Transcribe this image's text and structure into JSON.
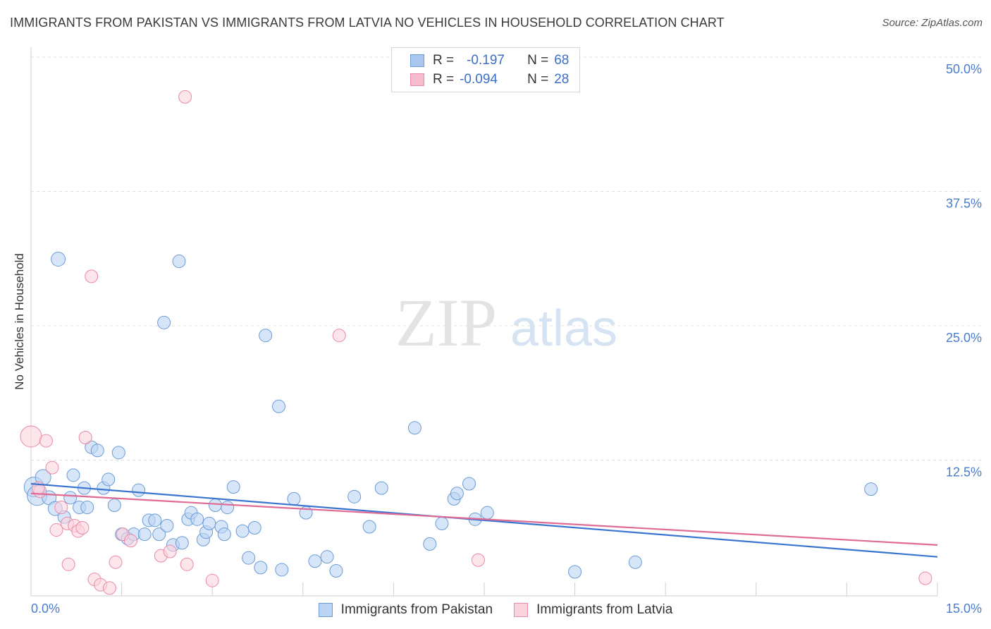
{
  "title": "IMMIGRANTS FROM PAKISTAN VS IMMIGRANTS FROM LATVIA NO VEHICLES IN HOUSEHOLD CORRELATION CHART",
  "source": "Source: ZipAtlas.com",
  "watermark": {
    "zip": "ZIP",
    "atlas": "atlas"
  },
  "stats": [
    {
      "r_label": "R =",
      "r_value": "-0.197",
      "n_label": "N =",
      "n_value": "68",
      "color": "#a9c7ee",
      "border": "#6b9bd6"
    },
    {
      "r_label": "R =",
      "r_value": "-0.094",
      "n_label": "N =",
      "n_value": "28",
      "color": "#f6bccd",
      "border": "#e88aa6"
    }
  ],
  "legend": [
    {
      "label": "Immigrants from Pakistan",
      "color": "#bcd4f3",
      "border": "#6b9bd6"
    },
    {
      "label": "Immigrants from Latvia",
      "color": "#fbd3df",
      "border": "#e88aa6"
    }
  ],
  "chart_data": {
    "type": "scatter",
    "ylabel": "No Vehicles in Household",
    "xlabel": "",
    "xlim": [
      0,
      15
    ],
    "ylim": [
      0,
      50
    ],
    "x_tick_labels": [
      {
        "value": 0,
        "label": "0.0%"
      },
      {
        "value": 15,
        "label": "15.0%"
      }
    ],
    "y_tick_labels": [
      {
        "value": 12.5,
        "label": "12.5%"
      },
      {
        "value": 25,
        "label": "25.0%"
      },
      {
        "value": 37.5,
        "label": "37.5%"
      },
      {
        "value": 50,
        "label": "50.0%"
      }
    ],
    "series": [
      {
        "name": "Immigrants from Pakistan",
        "color": "#6b9bd6",
        "fill": "#bcd4f3",
        "trend": {
          "x": [
            0,
            15
          ],
          "y": [
            10.3,
            3.5
          ],
          "color": "#3a74d1"
        },
        "points": [
          [
            0.05,
            10.0,
            14
          ],
          [
            0.1,
            9.2,
            14
          ],
          [
            0.2,
            10.9,
            11
          ],
          [
            0.3,
            9.0,
            10
          ],
          [
            0.4,
            8.0,
            10
          ],
          [
            0.45,
            31.2,
            10
          ],
          [
            0.55,
            7.2,
            9
          ],
          [
            0.65,
            9.0,
            9
          ],
          [
            0.7,
            11.1,
            9
          ],
          [
            0.8,
            8.1,
            9
          ],
          [
            0.88,
            9.9,
            9
          ],
          [
            0.93,
            8.1,
            9
          ],
          [
            1.0,
            13.7,
            9
          ],
          [
            1.1,
            13.4,
            9
          ],
          [
            1.2,
            9.9,
            9
          ],
          [
            1.28,
            10.7,
            9
          ],
          [
            1.38,
            8.3,
            9
          ],
          [
            1.45,
            13.2,
            9
          ],
          [
            1.5,
            5.6,
            9
          ],
          [
            1.6,
            5.2,
            9
          ],
          [
            1.7,
            5.6,
            9
          ],
          [
            1.78,
            9.7,
            9
          ],
          [
            1.88,
            5.6,
            9
          ],
          [
            1.95,
            6.9,
            9
          ],
          [
            2.05,
            6.9,
            9
          ],
          [
            2.12,
            5.6,
            9
          ],
          [
            2.2,
            25.3,
            9
          ],
          [
            2.25,
            6.4,
            9
          ],
          [
            2.35,
            4.6,
            9
          ],
          [
            2.45,
            31.0,
            9
          ],
          [
            2.5,
            4.8,
            9
          ],
          [
            2.6,
            7.0,
            9
          ],
          [
            2.65,
            7.6,
            9
          ],
          [
            2.75,
            7.0,
            9
          ],
          [
            2.85,
            5.1,
            9
          ],
          [
            2.9,
            5.8,
            9
          ],
          [
            2.95,
            6.6,
            9
          ],
          [
            3.05,
            8.3,
            9
          ],
          [
            3.15,
            6.3,
            9
          ],
          [
            3.2,
            5.6,
            9
          ],
          [
            3.25,
            8.1,
            9
          ],
          [
            3.35,
            10.0,
            9
          ],
          [
            3.5,
            5.9,
            9
          ],
          [
            3.6,
            3.4,
            9
          ],
          [
            3.7,
            6.2,
            9
          ],
          [
            3.8,
            2.5,
            9
          ],
          [
            3.88,
            24.1,
            9
          ],
          [
            4.1,
            17.5,
            9
          ],
          [
            4.15,
            2.3,
            9
          ],
          [
            4.35,
            8.9,
            9
          ],
          [
            4.55,
            7.6,
            9
          ],
          [
            4.7,
            3.1,
            9
          ],
          [
            4.9,
            3.5,
            9
          ],
          [
            5.05,
            2.2,
            9
          ],
          [
            5.35,
            9.1,
            9
          ],
          [
            5.6,
            6.3,
            9
          ],
          [
            5.8,
            9.9,
            9
          ],
          [
            6.35,
            15.5,
            9
          ],
          [
            6.6,
            4.7,
            9
          ],
          [
            6.8,
            6.6,
            9
          ],
          [
            7.0,
            8.9,
            9
          ],
          [
            7.05,
            9.4,
            9
          ],
          [
            7.25,
            10.3,
            9
          ],
          [
            7.35,
            7.0,
            9
          ],
          [
            7.55,
            7.6,
            9
          ],
          [
            9.0,
            2.1,
            9
          ],
          [
            10.0,
            3.0,
            9
          ],
          [
            13.9,
            9.8,
            9
          ]
        ]
      },
      {
        "name": "Immigrants from Latvia",
        "color": "#e88aa6",
        "fill": "#fbd3df",
        "trend": {
          "x": [
            0,
            15
          ],
          "y": [
            9.4,
            4.6
          ],
          "color": "#e06b95"
        },
        "points": [
          [
            0.0,
            14.7,
            15
          ],
          [
            0.15,
            9.6,
            9
          ],
          [
            0.25,
            14.3,
            9
          ],
          [
            0.35,
            11.8,
            9
          ],
          [
            0.42,
            6.0,
            9
          ],
          [
            0.5,
            8.1,
            9
          ],
          [
            0.6,
            6.6,
            9
          ],
          [
            0.62,
            2.8,
            9
          ],
          [
            0.72,
            6.4,
            9
          ],
          [
            0.78,
            5.9,
            9
          ],
          [
            0.85,
            6.2,
            9
          ],
          [
            0.9,
            14.6,
            9
          ],
          [
            1.0,
            29.6,
            9
          ],
          [
            1.05,
            1.4,
            9
          ],
          [
            1.15,
            0.9,
            9
          ],
          [
            1.3,
            0.6,
            9
          ],
          [
            1.4,
            3.0,
            9
          ],
          [
            1.52,
            5.6,
            9
          ],
          [
            1.65,
            5.0,
            9
          ],
          [
            2.15,
            3.6,
            9
          ],
          [
            2.3,
            4.0,
            9
          ],
          [
            2.55,
            46.3,
            9
          ],
          [
            2.58,
            2.8,
            9
          ],
          [
            3.0,
            1.3,
            9
          ],
          [
            5.1,
            24.1,
            9
          ],
          [
            7.4,
            3.2,
            9
          ],
          [
            14.8,
            1.5,
            9
          ],
          [
            0.12,
            9.9,
            9
          ]
        ]
      }
    ]
  }
}
